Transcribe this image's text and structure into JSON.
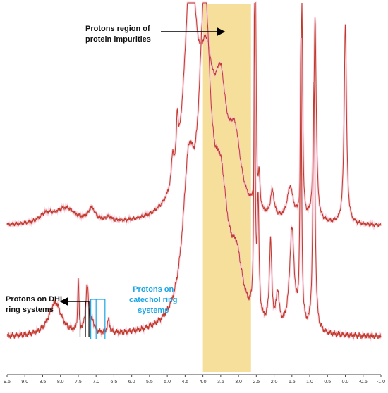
{
  "chart_data": {
    "type": "line",
    "title": "",
    "xlabel": "",
    "ylabel": "",
    "x_unit_note": "",
    "xlim": [
      9.5,
      -1.0
    ],
    "x_reversed": true,
    "x_ticks": [
      "9.5",
      "9.0",
      "8.5",
      "8.0",
      "7.5",
      "7.0",
      "6.5",
      "6.0",
      "5.5",
      "5.0",
      "4.5",
      "4.0",
      "3.5",
      "3.0",
      "2.5",
      "2.0",
      "1.5",
      "1.0",
      "0.5",
      "0.0",
      "-0.5",
      "-1.0"
    ],
    "grid": false,
    "highlight_region": {
      "from": 4.0,
      "to": 2.65,
      "color": "#f5d98a"
    },
    "series": [
      {
        "name": "",
        "color": "#c0392b",
        "baseline_fraction": 0.6,
        "peaks": [
          {
            "ppm": 8.4,
            "height": 0.04,
            "width": 0.25
          },
          {
            "ppm": 7.85,
            "height": 0.07,
            "width": 0.35
          },
          {
            "ppm": 7.12,
            "height": 0.06,
            "width": 0.12
          },
          {
            "ppm": 6.65,
            "height": 0.02,
            "width": 0.1
          },
          {
            "ppm": 4.85,
            "height": 0.12,
            "width": 0.04
          },
          {
            "ppm": 4.72,
            "height": 0.2,
            "width": 0.03
          },
          {
            "ppm": 4.35,
            "height": 1.0,
            "width": 0.22
          },
          {
            "ppm": 3.9,
            "height": 0.55,
            "width": 0.25
          },
          {
            "ppm": 3.5,
            "height": 0.45,
            "width": 0.2
          },
          {
            "ppm": 3.1,
            "height": 0.3,
            "width": 0.2
          },
          {
            "ppm": 2.52,
            "height": 1.0,
            "width": 0.02
          },
          {
            "ppm": 2.42,
            "height": 0.15,
            "width": 0.03
          },
          {
            "ppm": 2.05,
            "height": 0.12,
            "width": 0.06
          },
          {
            "ppm": 1.55,
            "height": 0.15,
            "width": 0.1
          },
          {
            "ppm": 1.22,
            "height": 1.0,
            "width": 0.025
          },
          {
            "ppm": 0.85,
            "height": 0.92,
            "width": 0.04
          },
          {
            "ppm": 0.0,
            "height": 0.9,
            "width": 0.04
          }
        ]
      },
      {
        "name": "",
        "color": "#c0392b",
        "baseline_fraction": 0.9,
        "peaks": [
          {
            "ppm": 8.15,
            "height": 0.1,
            "width": 0.22
          },
          {
            "ppm": 7.5,
            "height": 0.16,
            "width": 0.02
          },
          {
            "ppm": 7.25,
            "height": 0.14,
            "width": 0.05
          },
          {
            "ppm": 7.1,
            "height": 0.03,
            "width": 0.06
          },
          {
            "ppm": 6.65,
            "height": 0.04,
            "width": 0.04
          },
          {
            "ppm": 4.4,
            "height": 0.4,
            "width": 0.2
          },
          {
            "ppm": 3.95,
            "height": 0.9,
            "width": 0.2
          },
          {
            "ppm": 3.5,
            "height": 0.35,
            "width": 0.25
          },
          {
            "ppm": 3.05,
            "height": 0.15,
            "width": 0.2
          },
          {
            "ppm": 2.55,
            "height": 0.95,
            "width": 0.02
          },
          {
            "ppm": 2.45,
            "height": 0.35,
            "width": 0.03
          },
          {
            "ppm": 2.1,
            "height": 0.25,
            "width": 0.04
          },
          {
            "ppm": 1.9,
            "height": 0.1,
            "width": 0.05
          },
          {
            "ppm": 1.5,
            "height": 0.3,
            "width": 0.08
          },
          {
            "ppm": 1.25,
            "height": 0.85,
            "width": 0.025
          },
          {
            "ppm": 0.88,
            "height": 0.75,
            "width": 0.035
          }
        ]
      }
    ],
    "annotations": {
      "protein": {
        "line1": "Protons region  of",
        "line2": "protein impurities",
        "arrow_to_ppm": 3.4
      },
      "dhi": {
        "line1": "Protons on DHI",
        "line2": "ring systems",
        "markers_ppm": [
          7.45,
          7.3,
          7.2
        ]
      },
      "catechol": {
        "line1": "Protons on",
        "line2": "catechol ring",
        "line3": "systems",
        "markers_ppm": [
          7.15,
          7.0,
          6.75
        ]
      }
    }
  }
}
